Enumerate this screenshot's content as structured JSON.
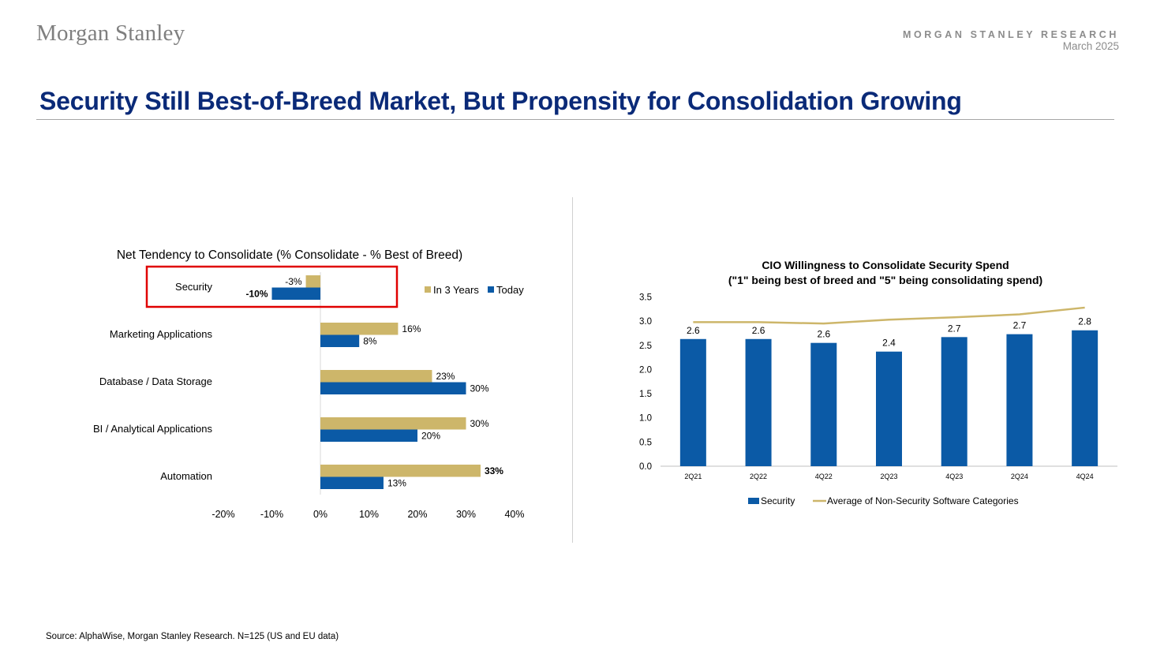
{
  "header": {
    "logo": "Morgan Stanley",
    "brand_line": "MORGAN STANLEY RESEARCH",
    "date": "March 2025",
    "title": "Security Still Best-of-Breed Market, But Propensity for Consolidation Growing"
  },
  "chart_data": [
    {
      "type": "bar",
      "orientation": "horizontal",
      "title": "Net Tendency to Consolidate (% Consolidate - % Best of Breed)",
      "categories": [
        "Security",
        "Marketing Applications",
        "Database / Data Storage",
        "BI / Analytical Applications",
        "Automation"
      ],
      "series": [
        {
          "name": "In 3 Years",
          "color": "#cdb66a",
          "values": [
            -3,
            16,
            23,
            30,
            33
          ],
          "labels": [
            "-3%",
            "16%",
            "23%",
            "30%",
            "33%"
          ]
        },
        {
          "name": "Today",
          "color": "#0b5aa6",
          "values": [
            -10,
            8,
            30,
            20,
            13
          ],
          "labels": [
            "-10%",
            "8%",
            "30%",
            "20%",
            "13%"
          ]
        }
      ],
      "xlim": [
        -20,
        40
      ],
      "xticks": [
        "-20%",
        "-10%",
        "0%",
        "10%",
        "20%",
        "30%",
        "40%"
      ],
      "legend_position": "top-right",
      "highlight": "Security"
    },
    {
      "type": "bar+line",
      "title": "CIO Willingness to Consolidate Security Spend",
      "subtitle": "(\"1\" being best of breed and \"5\"  being consolidating spend)",
      "categories": [
        "2Q21",
        "2Q22",
        "4Q22",
        "2Q23",
        "4Q23",
        "2Q24",
        "4Q24"
      ],
      "series": [
        {
          "name": "Security",
          "type": "bar",
          "color": "#0b5aa6",
          "values": [
            2.63,
            2.63,
            2.55,
            2.37,
            2.67,
            2.73,
            2.81
          ],
          "labels": [
            "2.6",
            "2.6",
            "2.6",
            "2.4",
            "2.7",
            "2.7",
            "2.8"
          ]
        },
        {
          "name": "Average of Non-Security Software Categories",
          "type": "line",
          "color": "#cdb66a",
          "values": [
            2.98,
            2.98,
            2.95,
            3.03,
            3.08,
            3.14,
            3.28
          ]
        }
      ],
      "ylim": [
        0,
        3.5
      ],
      "yticks": [
        "0.0",
        "0.5",
        "1.0",
        "1.5",
        "2.0",
        "2.5",
        "3.0",
        "3.5"
      ],
      "legend_position": "bottom"
    }
  ],
  "footer": {
    "source": "Source: AlphaWise, Morgan Stanley Research. N=125 (US and EU data)"
  }
}
